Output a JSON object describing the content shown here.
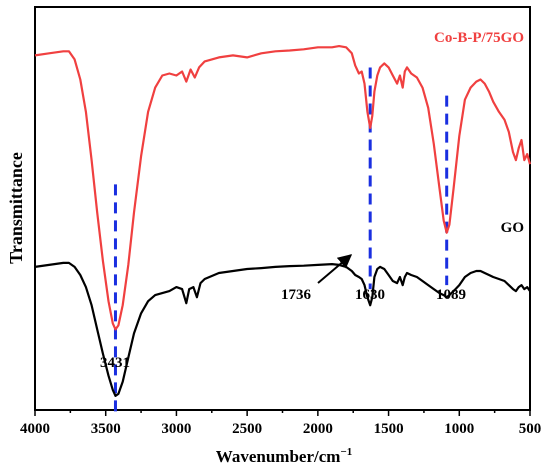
{
  "chart_data": {
    "type": "line",
    "title": "",
    "xlabel": "Wavenumber/cm",
    "xlabel_superscript": "−1",
    "ylabel": "Transmittance",
    "xlim": [
      4000,
      500
    ],
    "xaxis_reversed": true,
    "x_ticks": [
      4000,
      3500,
      3000,
      2500,
      2000,
      1500,
      1000,
      500
    ],
    "y_ticks_shown": false,
    "grid": false,
    "series": [
      {
        "name": "Co-B-P/75GO",
        "color": "#f04040",
        "points": [
          [
            4000,
            0.88
          ],
          [
            3900,
            0.885
          ],
          [
            3800,
            0.89
          ],
          [
            3760,
            0.89
          ],
          [
            3720,
            0.87
          ],
          [
            3680,
            0.82
          ],
          [
            3640,
            0.74
          ],
          [
            3600,
            0.62
          ],
          [
            3560,
            0.49
          ],
          [
            3520,
            0.37
          ],
          [
            3480,
            0.27
          ],
          [
            3450,
            0.215
          ],
          [
            3431,
            0.2
          ],
          [
            3410,
            0.21
          ],
          [
            3380,
            0.26
          ],
          [
            3340,
            0.36
          ],
          [
            3300,
            0.49
          ],
          [
            3250,
            0.63
          ],
          [
            3200,
            0.74
          ],
          [
            3150,
            0.8
          ],
          [
            3100,
            0.83
          ],
          [
            3050,
            0.835
          ],
          [
            3000,
            0.83
          ],
          [
            2960,
            0.84
          ],
          [
            2930,
            0.815
          ],
          [
            2900,
            0.845
          ],
          [
            2870,
            0.825
          ],
          [
            2840,
            0.85
          ],
          [
            2800,
            0.865
          ],
          [
            2700,
            0.875
          ],
          [
            2600,
            0.88
          ],
          [
            2500,
            0.875
          ],
          [
            2400,
            0.885
          ],
          [
            2300,
            0.89
          ],
          [
            2200,
            0.892
          ],
          [
            2100,
            0.895
          ],
          [
            2000,
            0.9
          ],
          [
            1900,
            0.9
          ],
          [
            1850,
            0.903
          ],
          [
            1800,
            0.9
          ],
          [
            1760,
            0.885
          ],
          [
            1736,
            0.855
          ],
          [
            1710,
            0.835
          ],
          [
            1690,
            0.84
          ],
          [
            1670,
            0.81
          ],
          [
            1650,
            0.74
          ],
          [
            1630,
            0.7
          ],
          [
            1615,
            0.73
          ],
          [
            1600,
            0.79
          ],
          [
            1580,
            0.83
          ],
          [
            1560,
            0.85
          ],
          [
            1530,
            0.86
          ],
          [
            1500,
            0.85
          ],
          [
            1470,
            0.83
          ],
          [
            1440,
            0.81
          ],
          [
            1420,
            0.83
          ],
          [
            1400,
            0.8
          ],
          [
            1385,
            0.84
          ],
          [
            1370,
            0.85
          ],
          [
            1340,
            0.835
          ],
          [
            1300,
            0.825
          ],
          [
            1260,
            0.8
          ],
          [
            1220,
            0.75
          ],
          [
            1180,
            0.66
          ],
          [
            1140,
            0.55
          ],
          [
            1110,
            0.47
          ],
          [
            1089,
            0.44
          ],
          [
            1070,
            0.46
          ],
          [
            1040,
            0.55
          ],
          [
            1000,
            0.68
          ],
          [
            960,
            0.77
          ],
          [
            920,
            0.8
          ],
          [
            880,
            0.815
          ],
          [
            850,
            0.82
          ],
          [
            820,
            0.81
          ],
          [
            790,
            0.79
          ],
          [
            760,
            0.765
          ],
          [
            720,
            0.74
          ],
          [
            680,
            0.72
          ],
          [
            650,
            0.69
          ],
          [
            620,
            0.64
          ],
          [
            600,
            0.62
          ],
          [
            580,
            0.65
          ],
          [
            560,
            0.67
          ],
          [
            540,
            0.62
          ],
          [
            520,
            0.635
          ],
          [
            500,
            0.61
          ]
        ]
      },
      {
        "name": "GO",
        "color": "#000000",
        "points": [
          [
            4000,
            0.355
          ],
          [
            3900,
            0.36
          ],
          [
            3800,
            0.365
          ],
          [
            3760,
            0.365
          ],
          [
            3720,
            0.355
          ],
          [
            3680,
            0.335
          ],
          [
            3640,
            0.305
          ],
          [
            3600,
            0.26
          ],
          [
            3560,
            0.2
          ],
          [
            3520,
            0.14
          ],
          [
            3480,
            0.085
          ],
          [
            3450,
            0.05
          ],
          [
            3431,
            0.035
          ],
          [
            3410,
            0.04
          ],
          [
            3380,
            0.07
          ],
          [
            3340,
            0.13
          ],
          [
            3300,
            0.19
          ],
          [
            3250,
            0.24
          ],
          [
            3200,
            0.27
          ],
          [
            3150,
            0.285
          ],
          [
            3100,
            0.29
          ],
          [
            3050,
            0.295
          ],
          [
            3000,
            0.305
          ],
          [
            2960,
            0.3
          ],
          [
            2930,
            0.265
          ],
          [
            2910,
            0.3
          ],
          [
            2880,
            0.305
          ],
          [
            2855,
            0.28
          ],
          [
            2830,
            0.315
          ],
          [
            2800,
            0.325
          ],
          [
            2700,
            0.34
          ],
          [
            2600,
            0.345
          ],
          [
            2500,
            0.35
          ],
          [
            2400,
            0.352
          ],
          [
            2300,
            0.355
          ],
          [
            2200,
            0.357
          ],
          [
            2100,
            0.358
          ],
          [
            2000,
            0.36
          ],
          [
            1900,
            0.362
          ],
          [
            1850,
            0.36
          ],
          [
            1800,
            0.355
          ],
          [
            1760,
            0.345
          ],
          [
            1736,
            0.335
          ],
          [
            1710,
            0.33
          ],
          [
            1690,
            0.325
          ],
          [
            1670,
            0.31
          ],
          [
            1650,
            0.28
          ],
          [
            1630,
            0.26
          ],
          [
            1615,
            0.28
          ],
          [
            1600,
            0.33
          ],
          [
            1580,
            0.35
          ],
          [
            1560,
            0.355
          ],
          [
            1530,
            0.35
          ],
          [
            1500,
            0.335
          ],
          [
            1470,
            0.32
          ],
          [
            1440,
            0.315
          ],
          [
            1420,
            0.33
          ],
          [
            1400,
            0.31
          ],
          [
            1385,
            0.33
          ],
          [
            1370,
            0.34
          ],
          [
            1340,
            0.335
          ],
          [
            1300,
            0.33
          ],
          [
            1260,
            0.32
          ],
          [
            1220,
            0.31
          ],
          [
            1180,
            0.3
          ],
          [
            1140,
            0.29
          ],
          [
            1110,
            0.285
          ],
          [
            1089,
            0.28
          ],
          [
            1070,
            0.285
          ],
          [
            1040,
            0.295
          ],
          [
            1000,
            0.31
          ],
          [
            960,
            0.33
          ],
          [
            920,
            0.34
          ],
          [
            880,
            0.345
          ],
          [
            850,
            0.345
          ],
          [
            820,
            0.34
          ],
          [
            790,
            0.335
          ],
          [
            760,
            0.33
          ],
          [
            720,
            0.325
          ],
          [
            680,
            0.32
          ],
          [
            650,
            0.31
          ],
          [
            620,
            0.3
          ],
          [
            600,
            0.295
          ],
          [
            580,
            0.305
          ],
          [
            560,
            0.31
          ],
          [
            540,
            0.3
          ],
          [
            520,
            0.305
          ],
          [
            500,
            0.295
          ]
        ]
      }
    ],
    "annotations": {
      "peak_labels": [
        {
          "text": "3431",
          "x": 3431
        },
        {
          "text": "1630",
          "x": 1630
        },
        {
          "text": "1089",
          "x": 1089
        },
        {
          "text": "1736",
          "x": 1736
        }
      ],
      "dashed_markers": [
        3431,
        1630,
        1089
      ],
      "marker_color": "#1a2fe0"
    }
  }
}
